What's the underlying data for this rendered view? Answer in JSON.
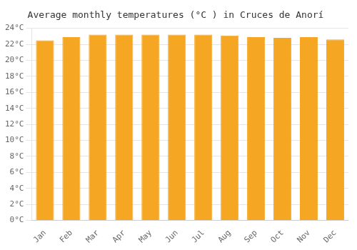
{
  "chart_data": {
    "type": "bar",
    "title": "Average monthly temperatures (°C ) in Cruces de Anorí",
    "categories": [
      "Jan",
      "Feb",
      "Mar",
      "Apr",
      "May",
      "Jun",
      "Jul",
      "Aug",
      "Sep",
      "Oct",
      "Nov",
      "Dec"
    ],
    "values": [
      22.5,
      22.9,
      23.2,
      23.2,
      23.2,
      23.2,
      23.2,
      23.1,
      22.9,
      22.8,
      22.9,
      22.6
    ],
    "color": "#F5A623",
    "ylim": [
      0,
      24
    ],
    "yticks": [
      {
        "value": 0,
        "label": "0°C"
      },
      {
        "value": 2,
        "label": "2°C"
      },
      {
        "value": 4,
        "label": "4°C"
      },
      {
        "value": 6,
        "label": "6°C"
      },
      {
        "value": 8,
        "label": "8°C"
      },
      {
        "value": 10,
        "label": "10°C"
      },
      {
        "value": 12,
        "label": "12°C"
      },
      {
        "value": 14,
        "label": "14°C"
      },
      {
        "value": 16,
        "label": "16°C"
      },
      {
        "value": 18,
        "label": "18°C"
      },
      {
        "value": 20,
        "label": "20°C"
      },
      {
        "value": 22,
        "label": "22°C"
      },
      {
        "value": 24,
        "label": "24°C"
      }
    ],
    "grid": true
  }
}
